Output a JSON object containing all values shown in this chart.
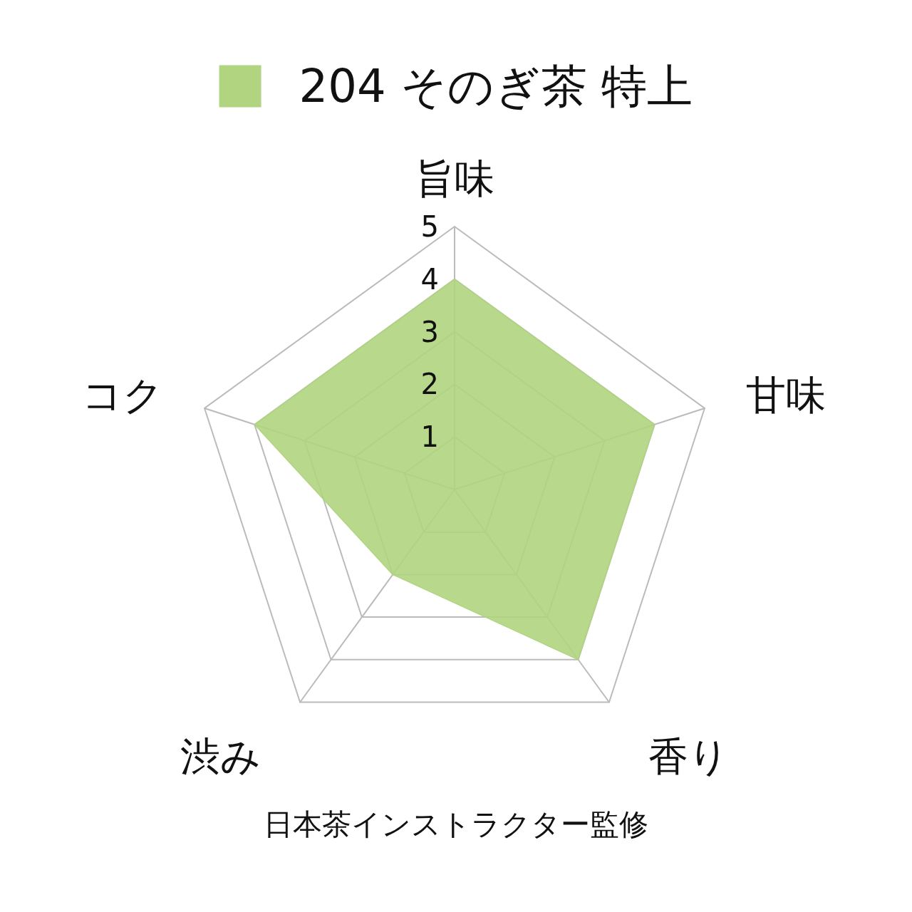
{
  "chart_data": {
    "type": "radar",
    "categories": [
      "旨味",
      "甘味",
      "香り",
      "渋み",
      "コク"
    ],
    "series": [
      {
        "name": "204 そのぎ茶 特上",
        "color": "#b0d480",
        "values": [
          4,
          4,
          4,
          2,
          4
        ]
      }
    ],
    "ylim": [
      0,
      5
    ],
    "yticks": [
      1,
      2,
      3,
      4,
      5
    ],
    "grid": true,
    "legend": "top",
    "marker": "none",
    "annotations": [
      "日本茶インストラクター監修"
    ]
  }
}
